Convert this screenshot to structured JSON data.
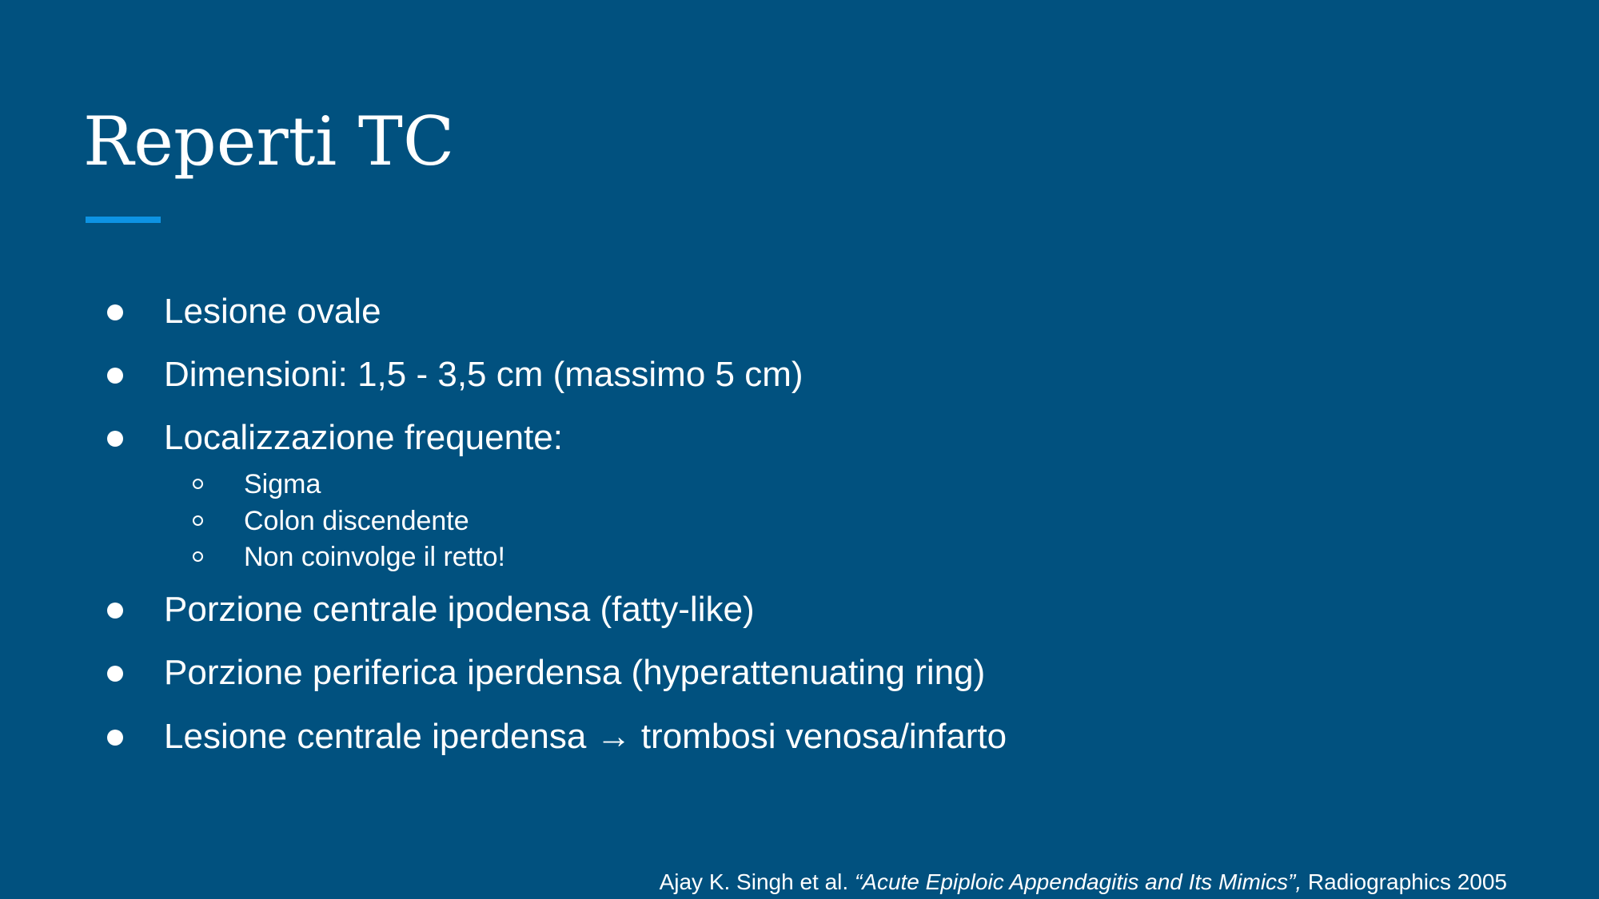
{
  "slide": {
    "title": "Reperti TC",
    "accent_color": "#0d93e3",
    "background_color": "#01517f"
  },
  "bullets": [
    {
      "text": "Lesione ovale"
    },
    {
      "text": "Dimensioni: 1,5 - 3,5 cm (massimo 5 cm)"
    },
    {
      "text": "Localizzazione frequente:"
    },
    {
      "text": "Porzione centrale ipodensa (fatty-like)"
    },
    {
      "text": "Porzione periferica iperdensa (hyperattenuating ring)"
    },
    {
      "text": "Lesione centrale iperdensa → trombosi venosa/infarto"
    }
  ],
  "sub_bullets": [
    {
      "text": "Sigma"
    },
    {
      "text": "Colon discendente"
    },
    {
      "text": "Non coinvolge il retto!"
    }
  ],
  "citation": {
    "authors": "Ajay K. Singh et al. ",
    "title": "“Acute Epiploic Appendagitis and Its Mimics”,",
    "source": " Radiographics 2005"
  }
}
